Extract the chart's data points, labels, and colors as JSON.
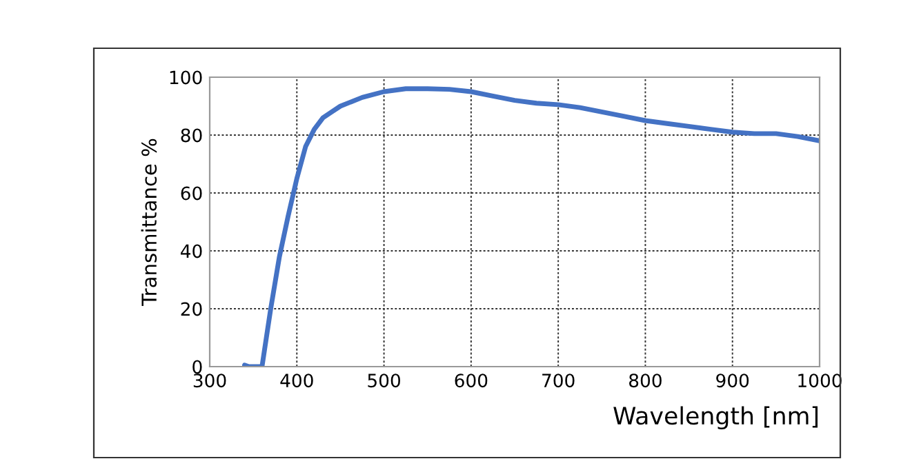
{
  "chart_data": {
    "type": "line",
    "xlabel": "Wavelength [nm]",
    "ylabel": "Transmittance %",
    "series": [
      {
        "color": "#4472c4",
        "x": [
          340,
          345,
          360,
          365,
          370,
          380,
          390,
          400,
          410,
          420,
          430,
          440,
          450,
          475,
          500,
          525,
          550,
          575,
          600,
          625,
          650,
          675,
          700,
          725,
          750,
          775,
          800,
          825,
          850,
          875,
          900,
          925,
          950,
          975,
          1000
        ],
        "values": [
          0.5,
          0,
          0,
          10,
          20,
          38,
          52,
          65,
          76,
          82,
          86,
          88,
          90,
          93,
          95,
          96,
          96,
          95.8,
          95,
          93.5,
          92,
          91,
          90.5,
          89.5,
          88,
          86.5,
          85,
          84,
          83,
          82,
          81,
          80.5,
          80.5,
          79.5,
          78
        ]
      }
    ],
    "xlim": [
      300,
      1000
    ],
    "ylim": [
      0,
      100
    ],
    "xticks": [
      300,
      400,
      500,
      600,
      700,
      800,
      900,
      1000
    ],
    "yticks": [
      0,
      20,
      40,
      60,
      80,
      100
    ],
    "grid": true,
    "marker": "none",
    "line_style": "solid"
  }
}
